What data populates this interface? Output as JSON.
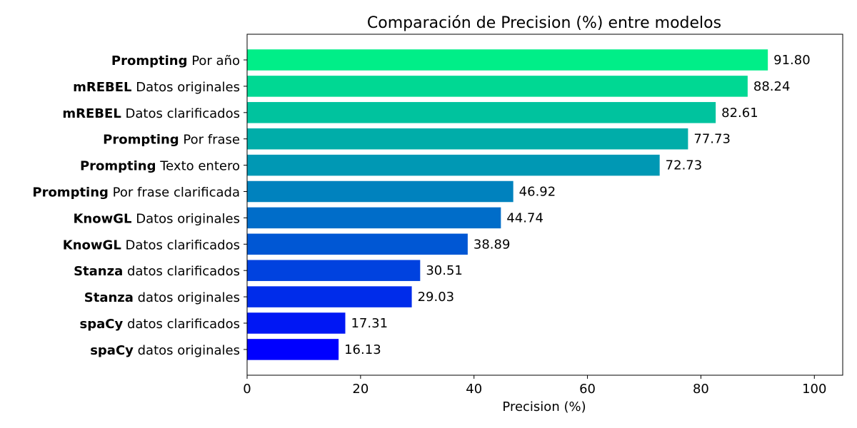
{
  "chart_data": {
    "type": "bar",
    "orientation": "horizontal",
    "title": "Comparación de Precision (%) entre modelos",
    "xlabel": "Precision (%)",
    "ylabel": "",
    "xlim": [
      0,
      105
    ],
    "xticks": [
      0,
      20,
      40,
      60,
      80,
      100
    ],
    "grid": false,
    "categories": [
      {
        "bold": "Prompting",
        "rest": "Por año",
        "value": 91.8,
        "label": "91.80",
        "color": "#00EE88"
      },
      {
        "bold": "mREBEL",
        "rest": "Datos originales",
        "value": 88.24,
        "label": "88.24",
        "color": "#00D893"
      },
      {
        "bold": "mREBEL",
        "rest": "Datos clarificados",
        "value": 82.61,
        "label": "82.61",
        "color": "#00C39E"
      },
      {
        "bold": "Prompting",
        "rest": "Por frase",
        "value": 77.73,
        "label": "77.73",
        "color": "#00ADA9"
      },
      {
        "bold": "Prompting",
        "rest": "Texto entero",
        "value": 72.73,
        "label": "72.73",
        "color": "#0098B4"
      },
      {
        "bold": "Prompting",
        "rest": "Por frase clarificada",
        "value": 46.92,
        "label": "46.92",
        "color": "#0082BE"
      },
      {
        "bold": "KnowGL",
        "rest": "Datos originales",
        "value": 44.74,
        "label": "44.74",
        "color": "#006DC9"
      },
      {
        "bold": "KnowGL",
        "rest": "Datos clarificados",
        "value": 38.89,
        "label": "38.89",
        "color": "#0057D4"
      },
      {
        "bold": "Stanza",
        "rest": "datos clarificados",
        "value": 30.51,
        "label": "30.51",
        "color": "#0042DF"
      },
      {
        "bold": "Stanza",
        "rest": "datos originales",
        "value": 29.03,
        "label": "29.03",
        "color": "#002CEA"
      },
      {
        "bold": "spaCy",
        "rest": "datos clarificados",
        "value": 17.31,
        "label": "17.31",
        "color": "#0017F4"
      },
      {
        "bold": "spaCy",
        "rest": "datos originales",
        "value": 16.13,
        "label": "16.13",
        "color": "#0000FF"
      }
    ]
  }
}
